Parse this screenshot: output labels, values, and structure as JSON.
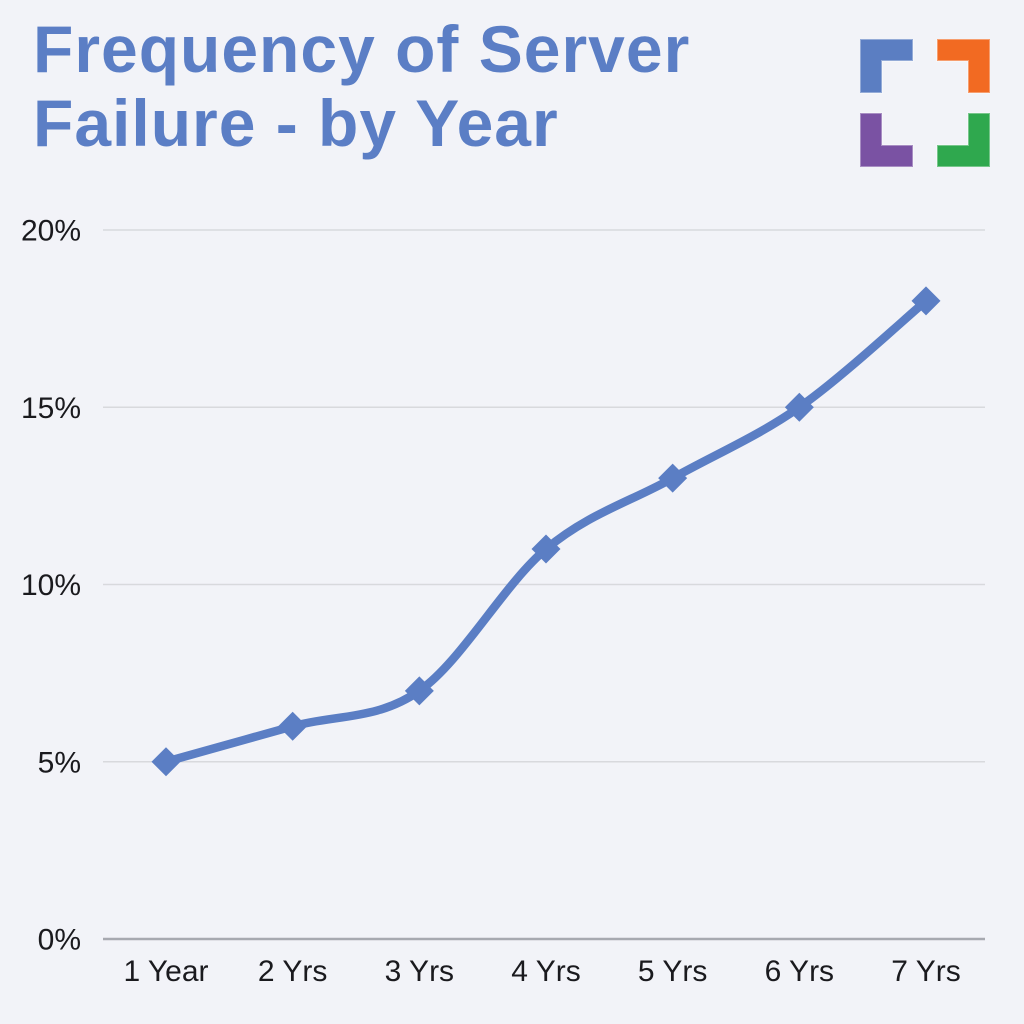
{
  "page": {
    "title": "Frequency of Server Failure - by Year",
    "background_color": "#f2f3f8",
    "title_color": "#5b7ec5"
  },
  "logo": {
    "description": "four-corner-brackets-logo",
    "colors": {
      "top_left": "#5b7ec2",
      "top_right": "#f26a22",
      "bottom_left": "#7a52a3",
      "bottom_right": "#2fa84e"
    }
  },
  "chart_data": {
    "type": "line",
    "title": "Frequency of Server Failure - by Year",
    "categories": [
      "1 Year",
      "2 Yrs",
      "3 Yrs",
      "4 Yrs",
      "5 Yrs",
      "6 Yrs",
      "7 Yrs"
    ],
    "values": [
      5,
      6,
      7,
      11,
      13,
      15,
      18
    ],
    "unit": "%",
    "xlabel": "",
    "ylabel": "",
    "ylim": [
      0,
      20
    ],
    "yticks": [
      0,
      5,
      10,
      15,
      20
    ],
    "ytick_labels": [
      "0%",
      "5%",
      "10%",
      "15%",
      "20%"
    ],
    "grid": true,
    "legend": "none",
    "line_color": "#5b7ec4",
    "marker": "diamond",
    "marker_color": "#5b7ec4",
    "gridline_color": "#d8d9dd",
    "axis_line_color": "#a7a9b0",
    "label_color": "#1a1a1e"
  }
}
